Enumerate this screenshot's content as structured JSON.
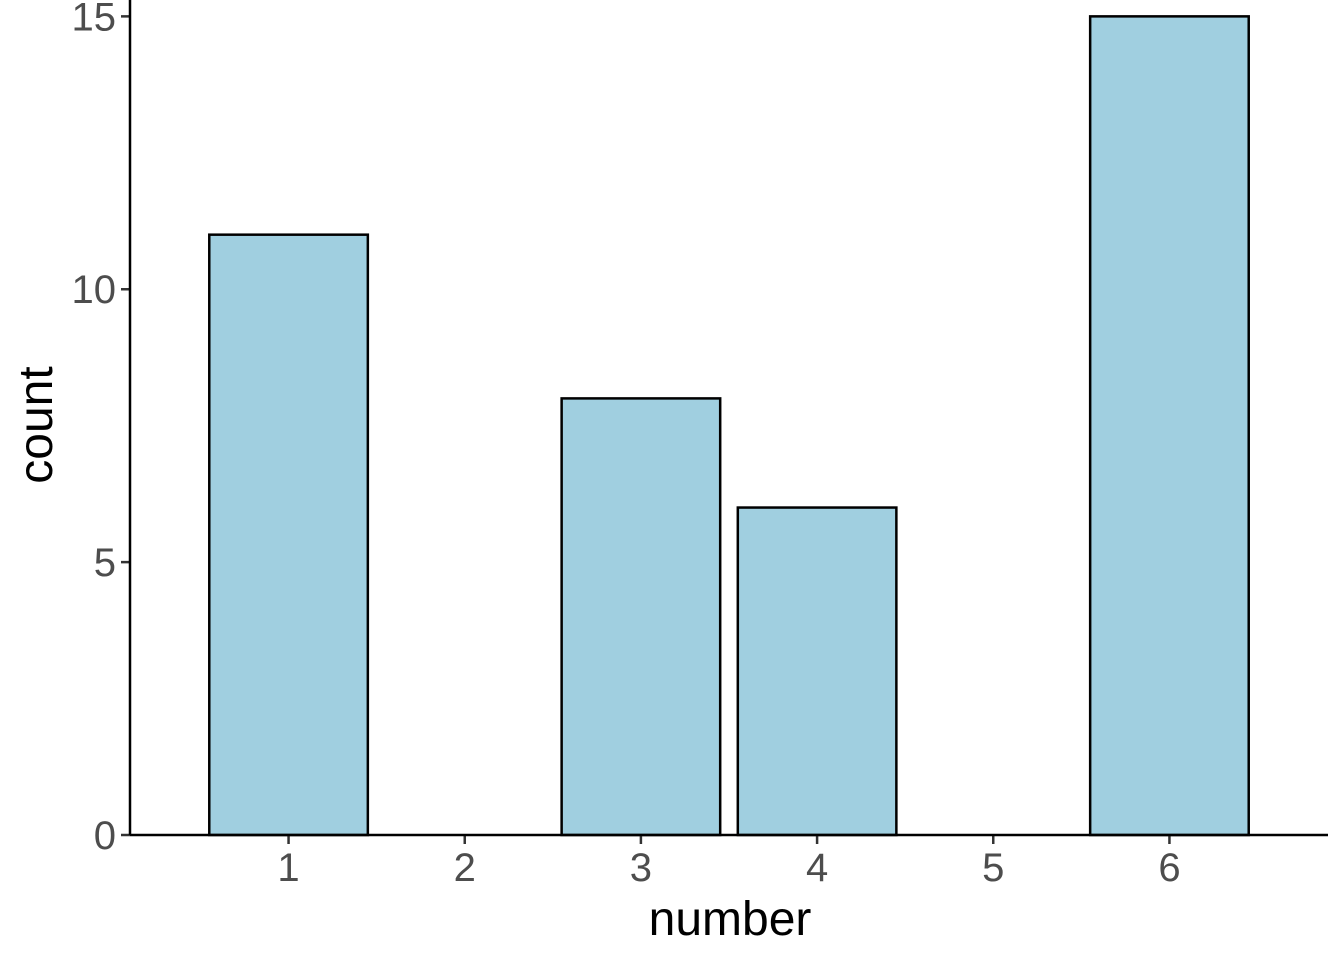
{
  "chart_data": {
    "type": "bar",
    "x": [
      1,
      3,
      4,
      6
    ],
    "values": [
      11,
      8,
      6,
      15
    ],
    "color": "#a0cfe0",
    "xlabel": "number",
    "ylabel": "count",
    "xlim": [
      0.1,
      6.9
    ],
    "xticks": [
      1,
      2,
      3,
      4,
      5,
      6
    ],
    "ylim": [
      0,
      15.3
    ],
    "yticks": [
      0,
      5,
      10,
      15
    ]
  }
}
